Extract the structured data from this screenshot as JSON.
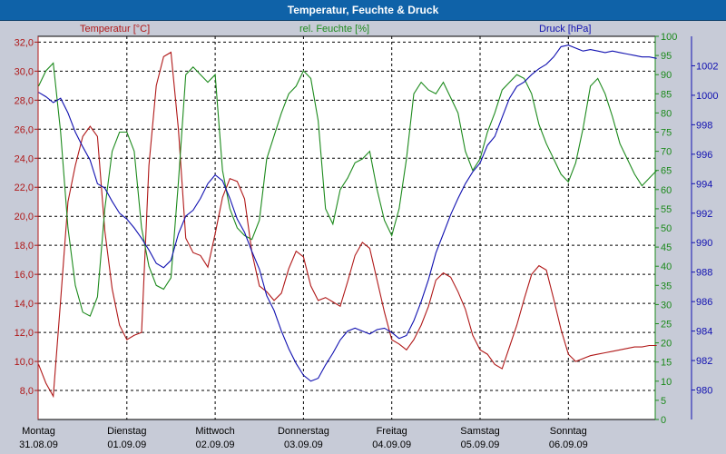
{
  "window": {
    "title": "Temperatur, Feuchte & Druck"
  },
  "colors": {
    "temperature": "#b01818",
    "humidity": "#1c8a1c",
    "pressure": "#1010b0",
    "grid": "#000000",
    "plot_background": "#ffffff",
    "panel_background": "#c7cbd7",
    "titlebar": "#0f62a8"
  },
  "chart_data": {
    "type": "line",
    "title": "Temperatur, Feuchte & Druck",
    "x_unit": "hours since Montag 31.08.09 00:00",
    "x_range": [
      0,
      168
    ],
    "x_ticks": [
      {
        "day": "Montag",
        "date": "31.08.09"
      },
      {
        "day": "Dienstag",
        "date": "01.09.09"
      },
      {
        "day": "Mittwoch",
        "date": "02.09.09"
      },
      {
        "day": "Donnerstag",
        "date": "03.09.09"
      },
      {
        "day": "Freitag",
        "date": "04.09.09"
      },
      {
        "day": "Samstag",
        "date": "05.09.09"
      },
      {
        "day": "Sonntag",
        "date": "06.09.09"
      }
    ],
    "axes": {
      "temperature": {
        "label": "Temperatur [°C]",
        "position": "left",
        "range": [
          6,
          32.4
        ],
        "ticks": [
          "8,0",
          "10,0",
          "12,0",
          "14,0",
          "16,0",
          "18,0",
          "20,0",
          "22,0",
          "24,0",
          "26,0",
          "28,0",
          "30,0",
          "32,0"
        ]
      },
      "humidity": {
        "label": "rel. Feuchte [%]",
        "position": "right-inner",
        "range": [
          0,
          100
        ],
        "ticks": [
          "0",
          "5",
          "10",
          "15",
          "20",
          "25",
          "30",
          "35",
          "40",
          "45",
          "50",
          "55",
          "60",
          "65",
          "70",
          "75",
          "80",
          "85",
          "90",
          "95",
          "100"
        ]
      },
      "pressure": {
        "label": "Druck [hPa]",
        "position": "right-outer",
        "range": [
          978,
          1004
        ],
        "ticks": [
          "980",
          "982",
          "984",
          "986",
          "988",
          "990",
          "992",
          "994",
          "996",
          "998",
          "1000",
          "1002"
        ]
      }
    },
    "series": [
      {
        "name": "Temperatur",
        "axis": "temperature",
        "x": [
          0,
          2,
          4,
          6,
          8,
          10,
          12,
          14,
          16,
          18,
          20,
          22,
          24,
          26,
          28,
          30,
          32,
          34,
          36,
          38,
          40,
          42,
          44,
          46,
          48,
          50,
          52,
          54,
          56,
          58,
          60,
          62,
          64,
          66,
          68,
          70,
          72,
          74,
          76,
          78,
          80,
          82,
          84,
          86,
          88,
          90,
          92,
          94,
          96,
          98,
          100,
          102,
          104,
          106,
          108,
          110,
          112,
          114,
          116,
          118,
          120,
          122,
          124,
          126,
          128,
          130,
          132,
          134,
          136,
          138,
          140,
          142,
          144,
          146,
          148,
          150,
          152,
          154,
          156,
          158,
          160,
          162,
          164,
          166,
          168
        ],
        "y": [
          9.8,
          8.5,
          7.6,
          14.2,
          21,
          23.5,
          25.5,
          26.2,
          25.5,
          19,
          15,
          12.5,
          11.5,
          11.8,
          12,
          23.5,
          29,
          31,
          31.3,
          26,
          18.5,
          17.5,
          17.3,
          16.5,
          18.8,
          21.3,
          22.6,
          22.4,
          21.2,
          17.5,
          15.2,
          14.8,
          14.2,
          14.7,
          16.4,
          17.6,
          17.2,
          15.2,
          14.2,
          14.4,
          14.1,
          13.8,
          15.5,
          17.3,
          18.2,
          17.8,
          15.6,
          13.4,
          11.5,
          11.2,
          10.8,
          11.5,
          12.5,
          13.8,
          15.6,
          16.1,
          15.8,
          14.8,
          13.6,
          11.8,
          10.8,
          10.5,
          9.8,
          9.5,
          11,
          12.5,
          14.3,
          16,
          16.6,
          16.3,
          14.3,
          12.2,
          10.5,
          10.0,
          10.2,
          10.4,
          10.5,
          10.6,
          10.7,
          10.8,
          10.9,
          11.0,
          11.0,
          11.1,
          11.1
        ]
      },
      {
        "name": "rel. Feuchte",
        "axis": "humidity",
        "x": [
          0,
          2,
          4,
          6,
          8,
          10,
          12,
          14,
          16,
          18,
          20,
          22,
          24,
          26,
          28,
          30,
          32,
          34,
          36,
          38,
          40,
          42,
          44,
          46,
          48,
          50,
          52,
          54,
          56,
          58,
          60,
          62,
          64,
          66,
          68,
          70,
          72,
          74,
          76,
          78,
          80,
          82,
          84,
          86,
          88,
          90,
          92,
          94,
          96,
          98,
          100,
          102,
          104,
          106,
          108,
          110,
          112,
          114,
          116,
          118,
          120,
          122,
          124,
          126,
          128,
          130,
          132,
          134,
          136,
          138,
          140,
          142,
          144,
          146,
          148,
          150,
          152,
          154,
          156,
          158,
          160,
          162,
          164,
          166,
          168
        ],
        "y": [
          87,
          91,
          93,
          75,
          50,
          35,
          28,
          27,
          32,
          55,
          70,
          75,
          75,
          70,
          50,
          40,
          35,
          34,
          37,
          62,
          90,
          92,
          90,
          88,
          90,
          65,
          55,
          50,
          48,
          47,
          52,
          68,
          74,
          80,
          85,
          87,
          91,
          89,
          78,
          55,
          51,
          60,
          63,
          67,
          68,
          70,
          60,
          52,
          48,
          55,
          68,
          85,
          88,
          86,
          85,
          88,
          84,
          80,
          70,
          65,
          68,
          75,
          80,
          86,
          88,
          90,
          89,
          85,
          77,
          72,
          68,
          64,
          62,
          67,
          76,
          87,
          89,
          85,
          79,
          72,
          68,
          64,
          61,
          63,
          65
        ]
      },
      {
        "name": "Druck",
        "axis": "pressure",
        "x": [
          0,
          2,
          4,
          6,
          8,
          10,
          12,
          14,
          16,
          18,
          20,
          22,
          24,
          26,
          28,
          30,
          32,
          34,
          36,
          38,
          40,
          42,
          44,
          46,
          48,
          50,
          52,
          54,
          56,
          58,
          60,
          62,
          64,
          66,
          68,
          70,
          72,
          74,
          76,
          78,
          80,
          82,
          84,
          86,
          88,
          90,
          92,
          94,
          96,
          98,
          100,
          102,
          104,
          106,
          108,
          110,
          112,
          114,
          116,
          118,
          120,
          122,
          124,
          126,
          128,
          130,
          132,
          134,
          136,
          138,
          140,
          142,
          144,
          146,
          148,
          150,
          152,
          154,
          156,
          158,
          160,
          162,
          164,
          166,
          168
        ],
        "y": [
          1000.2,
          999.9,
          999.5,
          999.8,
          998.8,
          997.5,
          996.5,
          995.6,
          994.0,
          993.7,
          992.8,
          992.0,
          991.6,
          991.0,
          990.3,
          989.5,
          988.6,
          988.3,
          988.8,
          990.6,
          991.8,
          992.2,
          993.0,
          994.0,
          994.6,
          994.2,
          993.0,
          991.6,
          990.7,
          989.4,
          988.2,
          986.4,
          985.4,
          984.0,
          982.8,
          981.8,
          981.0,
          980.6,
          980.8,
          981.7,
          982.5,
          983.4,
          984.0,
          984.2,
          984.0,
          983.8,
          984.1,
          984.2,
          983.9,
          983.5,
          983.7,
          984.7,
          986.0,
          987.5,
          989.3,
          990.6,
          991.9,
          993.0,
          994.0,
          994.8,
          995.4,
          996.6,
          997.2,
          998.5,
          999.8,
          1000.6,
          1000.9,
          1001.4,
          1001.8,
          1002.1,
          1002.6,
          1003.3,
          1003.4,
          1003.2,
          1003.0,
          1003.1,
          1003.0,
          1002.9,
          1003.0,
          1002.9,
          1002.8,
          1002.7,
          1002.6,
          1002.6,
          1002.5
        ]
      }
    ]
  }
}
